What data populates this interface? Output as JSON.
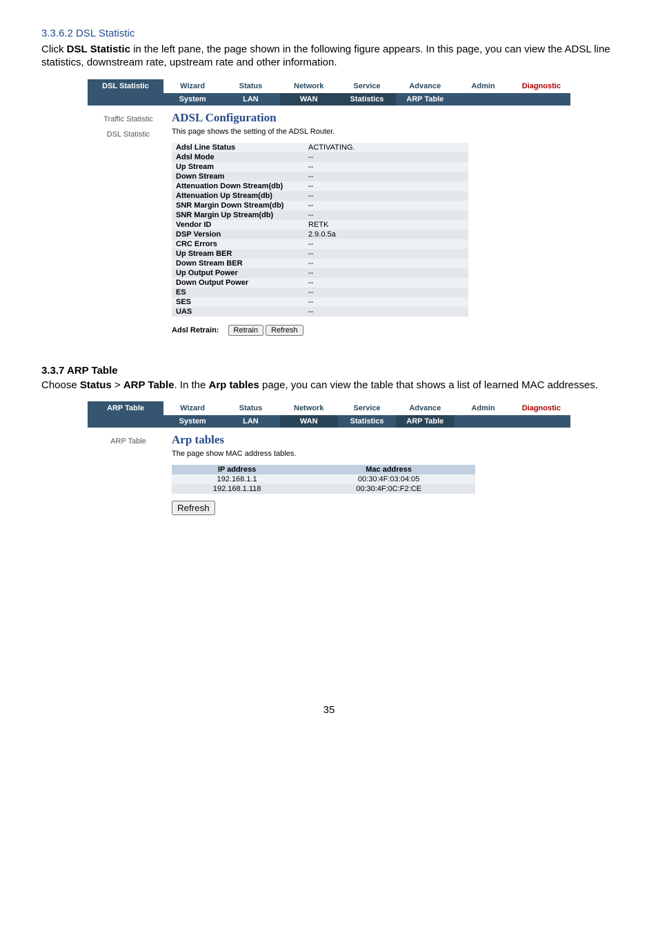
{
  "section_dsl_title": "3.3.6.2 DSL Statistic",
  "para_dsl": {
    "prefix": "Click ",
    "bold": "DSL Statistic",
    "rest": " in the left pane, the page shown in the following figure appears. In this page, you can view the ADSL line statistics, downstream rate, upstream rate and other information."
  },
  "dsl_ui": {
    "corner": "DSL Statistic",
    "topnav": [
      "Wizard",
      "Status",
      "Network",
      "Service",
      "Advance",
      "Admin",
      "Diagnostic"
    ],
    "subnav": [
      "System",
      "LAN",
      "WAN",
      "Statistics",
      "ARP Table"
    ],
    "left": [
      "Traffic Statistic",
      "DSL Statistic"
    ],
    "heading": "ADSL Configuration",
    "desc": "This page shows the setting of the ADSL Router.",
    "rows": [
      {
        "l": "Adsl Line Status",
        "v": "ACTIVATING."
      },
      {
        "l": "Adsl Mode",
        "v": "--"
      },
      {
        "l": "Up Stream",
        "v": "--"
      },
      {
        "l": "Down Stream",
        "v": "--"
      },
      {
        "l": "Attenuation Down Stream(db)",
        "v": "--"
      },
      {
        "l": "Attenuation Up Stream(db)",
        "v": "--"
      },
      {
        "l": "SNR Margin Down Stream(db)",
        "v": "--"
      },
      {
        "l": "SNR Margin Up Stream(db)",
        "v": "--"
      },
      {
        "l": "Vendor ID",
        "v": "RETK"
      },
      {
        "l": "DSP Version",
        "v": "2.9.0.5a"
      },
      {
        "l": "CRC Errors",
        "v": "--"
      },
      {
        "l": "Up Stream BER",
        "v": "--"
      },
      {
        "l": "Down Stream BER",
        "v": "--"
      },
      {
        "l": "Up Output Power",
        "v": "--"
      },
      {
        "l": "Down Output Power",
        "v": "--"
      },
      {
        "l": "ES",
        "v": "--"
      },
      {
        "l": "SES",
        "v": "--"
      },
      {
        "l": "UAS",
        "v": "--"
      }
    ],
    "retrain_label": "Adsl Retrain:",
    "btn_retrain": "Retrain",
    "btn_refresh": "Refresh"
  },
  "section_arp_title": "3.3.7 ARP Table",
  "para_arp": {
    "p1": "Choose ",
    "b1": "Status",
    "p2": " > ",
    "b2": "ARP Table",
    "p3": ". In the ",
    "b3": "Arp tables",
    "p4": " page, you can view the table that shows a list of learned MAC addresses."
  },
  "arp_ui": {
    "corner": "ARP Table",
    "topnav": [
      "Wizard",
      "Status",
      "Network",
      "Service",
      "Advance",
      "Admin",
      "Diagnostic"
    ],
    "subnav": [
      "System",
      "LAN",
      "WAN",
      "Statistics",
      "ARP Table"
    ],
    "left": [
      "ARP Table"
    ],
    "heading": "Arp tables",
    "desc": "The page show MAC address tables.",
    "hdr_ip": "IP address",
    "hdr_mac": "Mac address",
    "rows": [
      {
        "ip": "192.168.1.1",
        "mac": "00:30:4F:03:04:05"
      },
      {
        "ip": "192.168.1.118",
        "mac": "00:30:4F:0C:F2:CE"
      }
    ],
    "btn_refresh": "Refresh"
  },
  "page_no": "35"
}
